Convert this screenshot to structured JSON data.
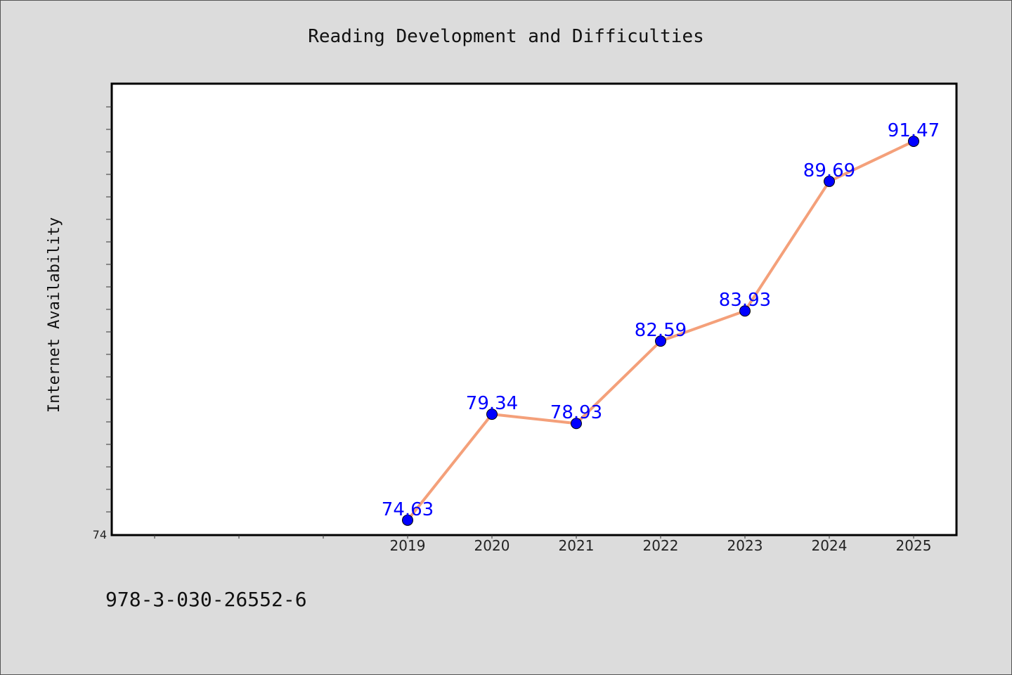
{
  "footer": {
    "code": "978-3-030-26552-6"
  },
  "colors": {
    "background": "#dcdcdc",
    "plot_background": "#ffffff",
    "line": "#f4a07a",
    "marker": "#0000ff",
    "data_label": "#0000ff"
  },
  "chart_data": {
    "type": "line",
    "title": "Reading Development and Difficulties",
    "xlabel": "",
    "ylabel": "Internet Availability",
    "categories": [
      "2019",
      "2020",
      "2021",
      "2022",
      "2023",
      "2024",
      "2025"
    ],
    "series": [
      {
        "values": [
          74.63,
          79.34,
          78.93,
          82.59,
          83.93,
          89.69,
          91.47
        ],
        "data_labels": [
          "74.63",
          "79.34",
          "78.93",
          "82.59",
          "83.93",
          "89.69",
          "91.47"
        ]
      }
    ],
    "ylim": [
      74,
      94
    ],
    "y_tick_label": "74",
    "grid": false,
    "legend": "none"
  }
}
